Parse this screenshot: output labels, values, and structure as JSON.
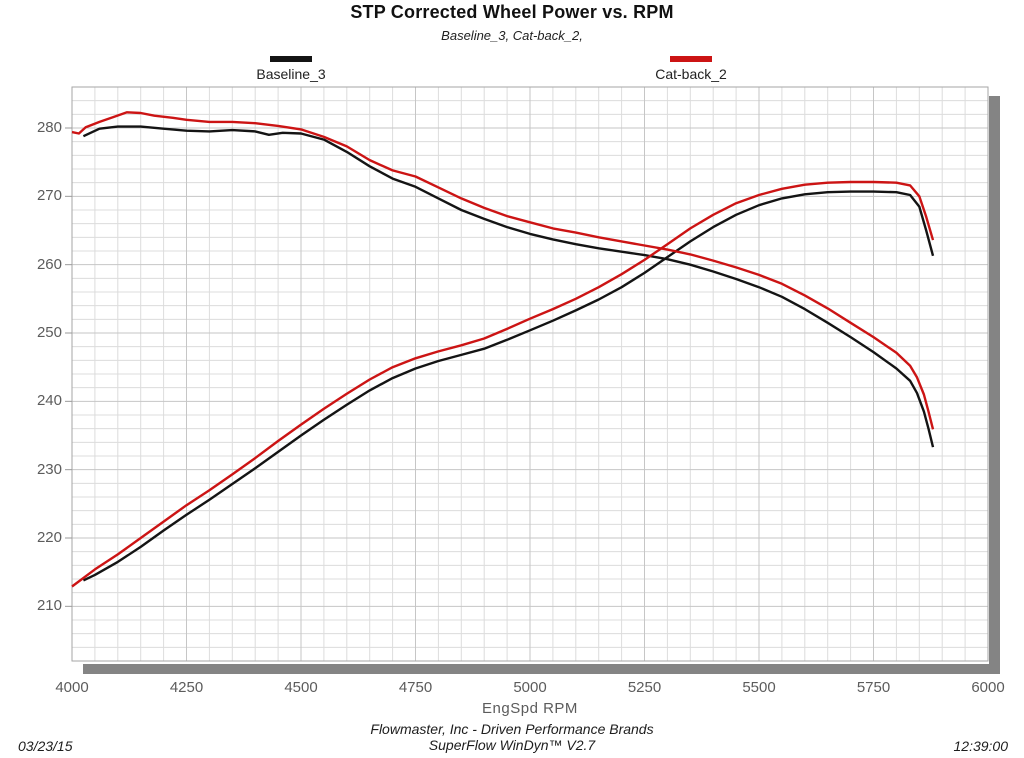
{
  "header": {
    "title": "STP Corrected Wheel Power vs. RPM",
    "subtitle": "Baseline_3, Cat-back_2,"
  },
  "footer": {
    "date": "03/23/15",
    "company_line": "Flowmaster, Inc - Driven Performance Brands",
    "software_line": "SuperFlow WinDyn™ V2.7",
    "time": "12:39:00"
  },
  "chart_data": {
    "type": "line",
    "title": "STP Corrected Wheel Power vs. RPM",
    "subtitle": "Baseline_3, Cat-back_2,",
    "xlabel": "EngSpd  RPM",
    "ylabel": "",
    "xlim": [
      4000,
      6000
    ],
    "ylim": [
      202,
      286
    ],
    "x_minor_step": 50,
    "x_major_step": 250,
    "y_minor_step": 2,
    "y_major_step": 10,
    "grid": true,
    "legend_position": "top",
    "x_ticks": [
      4000,
      4250,
      4500,
      4750,
      5000,
      5250,
      5500,
      5750,
      6000
    ],
    "y_ticks": [
      280,
      270,
      260,
      250,
      240,
      230,
      220,
      210
    ],
    "legend": [
      {
        "label": "Baseline_3",
        "color": "#141414"
      },
      {
        "label": "Cat-back_2",
        "color": "#cc1414"
      }
    ],
    "series": [
      {
        "name": "Baseline_3 torque-side curve (falling)",
        "legend_group": "Baseline_3",
        "color": "#141414",
        "points": [
          [
            4025,
            278.8
          ],
          [
            4060,
            279.9
          ],
          [
            4100,
            280.2
          ],
          [
            4150,
            280.2
          ],
          [
            4200,
            279.9
          ],
          [
            4250,
            279.6
          ],
          [
            4300,
            279.5
          ],
          [
            4350,
            279.7
          ],
          [
            4400,
            279.5
          ],
          [
            4430,
            279.0
          ],
          [
            4460,
            279.3
          ],
          [
            4500,
            279.2
          ],
          [
            4550,
            278.3
          ],
          [
            4600,
            276.5
          ],
          [
            4650,
            274.4
          ],
          [
            4700,
            272.6
          ],
          [
            4750,
            271.4
          ],
          [
            4800,
            269.7
          ],
          [
            4850,
            268.0
          ],
          [
            4900,
            266.7
          ],
          [
            4950,
            265.5
          ],
          [
            5000,
            264.5
          ],
          [
            5050,
            263.7
          ],
          [
            5100,
            263.0
          ],
          [
            5150,
            262.4
          ],
          [
            5200,
            261.9
          ],
          [
            5250,
            261.4
          ],
          [
            5300,
            260.8
          ],
          [
            5350,
            260.0
          ],
          [
            5400,
            259.0
          ],
          [
            5450,
            257.9
          ],
          [
            5500,
            256.7
          ],
          [
            5550,
            255.3
          ],
          [
            5600,
            253.5
          ],
          [
            5650,
            251.5
          ],
          [
            5700,
            249.4
          ],
          [
            5750,
            247.2
          ],
          [
            5800,
            244.8
          ],
          [
            5830,
            243.0
          ],
          [
            5845,
            241.2
          ],
          [
            5860,
            238.5
          ],
          [
            5870,
            236.0
          ],
          [
            5880,
            233.3
          ]
        ]
      },
      {
        "name": "Baseline_3 power-side curve (rising)",
        "legend_group": "Baseline_3",
        "color": "#141414",
        "points": [
          [
            4025,
            213.8
          ],
          [
            4050,
            214.6
          ],
          [
            4100,
            216.5
          ],
          [
            4150,
            218.7
          ],
          [
            4200,
            221.1
          ],
          [
            4250,
            223.4
          ],
          [
            4300,
            225.6
          ],
          [
            4350,
            227.9
          ],
          [
            4400,
            230.2
          ],
          [
            4450,
            232.6
          ],
          [
            4500,
            235.0
          ],
          [
            4550,
            237.3
          ],
          [
            4600,
            239.5
          ],
          [
            4650,
            241.6
          ],
          [
            4700,
            243.4
          ],
          [
            4750,
            244.8
          ],
          [
            4800,
            245.9
          ],
          [
            4850,
            246.8
          ],
          [
            4900,
            247.7
          ],
          [
            4950,
            249.0
          ],
          [
            5000,
            250.4
          ],
          [
            5050,
            251.8
          ],
          [
            5100,
            253.3
          ],
          [
            5150,
            254.9
          ],
          [
            5200,
            256.7
          ],
          [
            5250,
            258.8
          ],
          [
            5300,
            261.1
          ],
          [
            5350,
            263.4
          ],
          [
            5400,
            265.5
          ],
          [
            5450,
            267.3
          ],
          [
            5500,
            268.7
          ],
          [
            5550,
            269.7
          ],
          [
            5600,
            270.3
          ],
          [
            5650,
            270.6
          ],
          [
            5700,
            270.7
          ],
          [
            5750,
            270.7
          ],
          [
            5800,
            270.6
          ],
          [
            5830,
            270.2
          ],
          [
            5850,
            268.5
          ],
          [
            5865,
            265.0
          ],
          [
            5880,
            261.3
          ]
        ]
      },
      {
        "name": "Cat-back_2 torque-side curve (falling)",
        "legend_group": "Cat-back_2",
        "color": "#cc1414",
        "points": [
          [
            4000,
            279.4
          ],
          [
            4015,
            279.2
          ],
          [
            4030,
            280.1
          ],
          [
            4060,
            280.9
          ],
          [
            4090,
            281.6
          ],
          [
            4120,
            282.3
          ],
          [
            4150,
            282.2
          ],
          [
            4180,
            281.8
          ],
          [
            4220,
            281.5
          ],
          [
            4250,
            281.2
          ],
          [
            4300,
            280.9
          ],
          [
            4350,
            280.9
          ],
          [
            4400,
            280.7
          ],
          [
            4450,
            280.3
          ],
          [
            4500,
            279.8
          ],
          [
            4550,
            278.7
          ],
          [
            4600,
            277.3
          ],
          [
            4650,
            275.3
          ],
          [
            4700,
            273.8
          ],
          [
            4750,
            272.9
          ],
          [
            4800,
            271.3
          ],
          [
            4850,
            269.7
          ],
          [
            4900,
            268.3
          ],
          [
            4950,
            267.1
          ],
          [
            5000,
            266.2
          ],
          [
            5050,
            265.3
          ],
          [
            5100,
            264.7
          ],
          [
            5150,
            264.0
          ],
          [
            5200,
            263.4
          ],
          [
            5250,
            262.8
          ],
          [
            5300,
            262.2
          ],
          [
            5350,
            261.5
          ],
          [
            5400,
            260.6
          ],
          [
            5450,
            259.6
          ],
          [
            5500,
            258.5
          ],
          [
            5550,
            257.2
          ],
          [
            5600,
            255.5
          ],
          [
            5650,
            253.6
          ],
          [
            5700,
            251.5
          ],
          [
            5750,
            249.4
          ],
          [
            5800,
            247.1
          ],
          [
            5830,
            245.2
          ],
          [
            5845,
            243.5
          ],
          [
            5860,
            241.0
          ],
          [
            5870,
            238.5
          ],
          [
            5880,
            235.9
          ]
        ]
      },
      {
        "name": "Cat-back_2 power-side curve (rising)",
        "legend_group": "Cat-back_2",
        "color": "#cc1414",
        "points": [
          [
            4000,
            212.9
          ],
          [
            4050,
            215.4
          ],
          [
            4100,
            217.6
          ],
          [
            4150,
            220.0
          ],
          [
            4200,
            222.4
          ],
          [
            4250,
            224.8
          ],
          [
            4300,
            227.0
          ],
          [
            4350,
            229.3
          ],
          [
            4400,
            231.7
          ],
          [
            4450,
            234.2
          ],
          [
            4500,
            236.6
          ],
          [
            4550,
            238.9
          ],
          [
            4600,
            241.1
          ],
          [
            4650,
            243.2
          ],
          [
            4700,
            245.0
          ],
          [
            4750,
            246.3
          ],
          [
            4800,
            247.3
          ],
          [
            4850,
            248.2
          ],
          [
            4900,
            249.2
          ],
          [
            4950,
            250.6
          ],
          [
            5000,
            252.1
          ],
          [
            5050,
            253.5
          ],
          [
            5100,
            255.0
          ],
          [
            5150,
            256.7
          ],
          [
            5200,
            258.6
          ],
          [
            5250,
            260.7
          ],
          [
            5300,
            263.0
          ],
          [
            5350,
            265.3
          ],
          [
            5400,
            267.3
          ],
          [
            5450,
            269.0
          ],
          [
            5500,
            270.2
          ],
          [
            5550,
            271.1
          ],
          [
            5600,
            271.7
          ],
          [
            5650,
            272.0
          ],
          [
            5700,
            272.1
          ],
          [
            5750,
            272.1
          ],
          [
            5800,
            272.0
          ],
          [
            5830,
            271.6
          ],
          [
            5850,
            270.0
          ],
          [
            5865,
            267.0
          ],
          [
            5880,
            263.6
          ]
        ]
      }
    ]
  }
}
